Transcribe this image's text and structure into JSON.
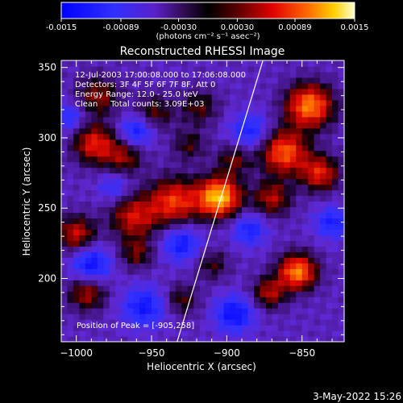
{
  "colorbar": {
    "tick_labels": [
      "-0.0015",
      "-0.00089",
      "-0.00030",
      "0.00030",
      "0.00089",
      "0.0015"
    ],
    "tick_values": [
      -0.0015,
      -0.00089,
      -0.0003,
      0.0003,
      0.00089,
      0.0015
    ],
    "range": [
      -0.0015,
      0.0015
    ],
    "units_label": "(photons cm⁻² s⁻¹ asec⁻²)"
  },
  "chart_data": {
    "type": "heatmap",
    "title": "Reconstructed RHESSI Image",
    "xlabel": "Heliocentric X (arcsec)",
    "ylabel": "Heliocentric Y (arcsec)",
    "xlim": [
      -1010,
      -822
    ],
    "ylim": [
      155,
      355
    ],
    "x_ticks": [
      -1000,
      -950,
      -900,
      -850
    ],
    "x_tick_labels": [
      "−1000",
      "−950",
      "−900",
      "−850"
    ],
    "y_ticks": [
      200,
      250,
      300,
      350
    ],
    "y_tick_labels": [
      "200",
      "250",
      "300",
      "350"
    ],
    "limb_line": [
      [
        -933,
        155
      ],
      [
        -876,
        355
      ]
    ],
    "peak": [
      -905,
      258
    ],
    "annotations": [
      "12-Jul-2003 17:00:08.000 to 17:06:08.000",
      "Detectors: 3F 4F 5F 6F 7F 8F, Att 0",
      "Energy Range: 12.0 - 25.0 keV",
      "Clean     Total counts: 3.09E+03"
    ],
    "peak_label": "Position of Peak = [-905,258]",
    "blobs": [
      {
        "x": -905,
        "y": 258,
        "amp": 0.00165,
        "sigma": 10
      },
      {
        "x": -935,
        "y": 255,
        "amp": 0.0011,
        "sigma": 12
      },
      {
        "x": -962,
        "y": 244,
        "amp": 0.0009,
        "sigma": 11
      },
      {
        "x": -988,
        "y": 296,
        "amp": 0.001,
        "sigma": 10
      },
      {
        "x": -968,
        "y": 287,
        "amp": 0.0007,
        "sigma": 9
      },
      {
        "x": -985,
        "y": 330,
        "amp": 0.0007,
        "sigma": 10
      },
      {
        "x": -948,
        "y": 318,
        "amp": 0.0006,
        "sigma": 9
      },
      {
        "x": -918,
        "y": 322,
        "amp": 0.00055,
        "sigma": 9
      },
      {
        "x": -845,
        "y": 323,
        "amp": 0.0014,
        "sigma": 11
      },
      {
        "x": -862,
        "y": 290,
        "amp": 0.00125,
        "sigma": 11
      },
      {
        "x": -838,
        "y": 275,
        "amp": 0.001,
        "sigma": 9
      },
      {
        "x": -870,
        "y": 257,
        "amp": 0.0008,
        "sigma": 9
      },
      {
        "x": -853,
        "y": 205,
        "amp": 0.0014,
        "sigma": 9
      },
      {
        "x": -872,
        "y": 190,
        "amp": 0.0008,
        "sigma": 8
      },
      {
        "x": -1000,
        "y": 232,
        "amp": 0.0009,
        "sigma": 9
      },
      {
        "x": -993,
        "y": 190,
        "amp": 0.0008,
        "sigma": 9
      },
      {
        "x": -960,
        "y": 218,
        "amp": 0.0006,
        "sigma": 8
      },
      {
        "x": -930,
        "y": 185,
        "amp": 0.00055,
        "sigma": 8
      },
      {
        "x": -910,
        "y": 210,
        "amp": 0.0005,
        "sigma": 8
      },
      {
        "x": -895,
        "y": 285,
        "amp": 0.0006,
        "sigma": 8
      },
      {
        "x": -925,
        "y": 295,
        "amp": 0.0005,
        "sigma": 8
      }
    ],
    "dips": [
      {
        "x": -990,
        "y": 210,
        "amp": -0.0009,
        "sigma": 9
      },
      {
        "x": -955,
        "y": 180,
        "amp": -0.0008,
        "sigma": 10
      },
      {
        "x": -930,
        "y": 225,
        "amp": -0.0008,
        "sigma": 9
      },
      {
        "x": -960,
        "y": 305,
        "amp": -0.0008,
        "sigma": 8
      },
      {
        "x": -895,
        "y": 175,
        "amp": -0.0009,
        "sigma": 9
      },
      {
        "x": -885,
        "y": 235,
        "amp": -0.0007,
        "sigma": 8
      },
      {
        "x": -885,
        "y": 305,
        "amp": -0.0007,
        "sigma": 9
      },
      {
        "x": -830,
        "y": 240,
        "amp": -0.0007,
        "sigma": 8
      },
      {
        "x": -975,
        "y": 265,
        "amp": -0.0005,
        "sigma": 7
      },
      {
        "x": -1005,
        "y": 315,
        "amp": -0.0006,
        "sigma": 7
      }
    ]
  },
  "footer": {
    "date": "3-May-2022 15:26"
  }
}
